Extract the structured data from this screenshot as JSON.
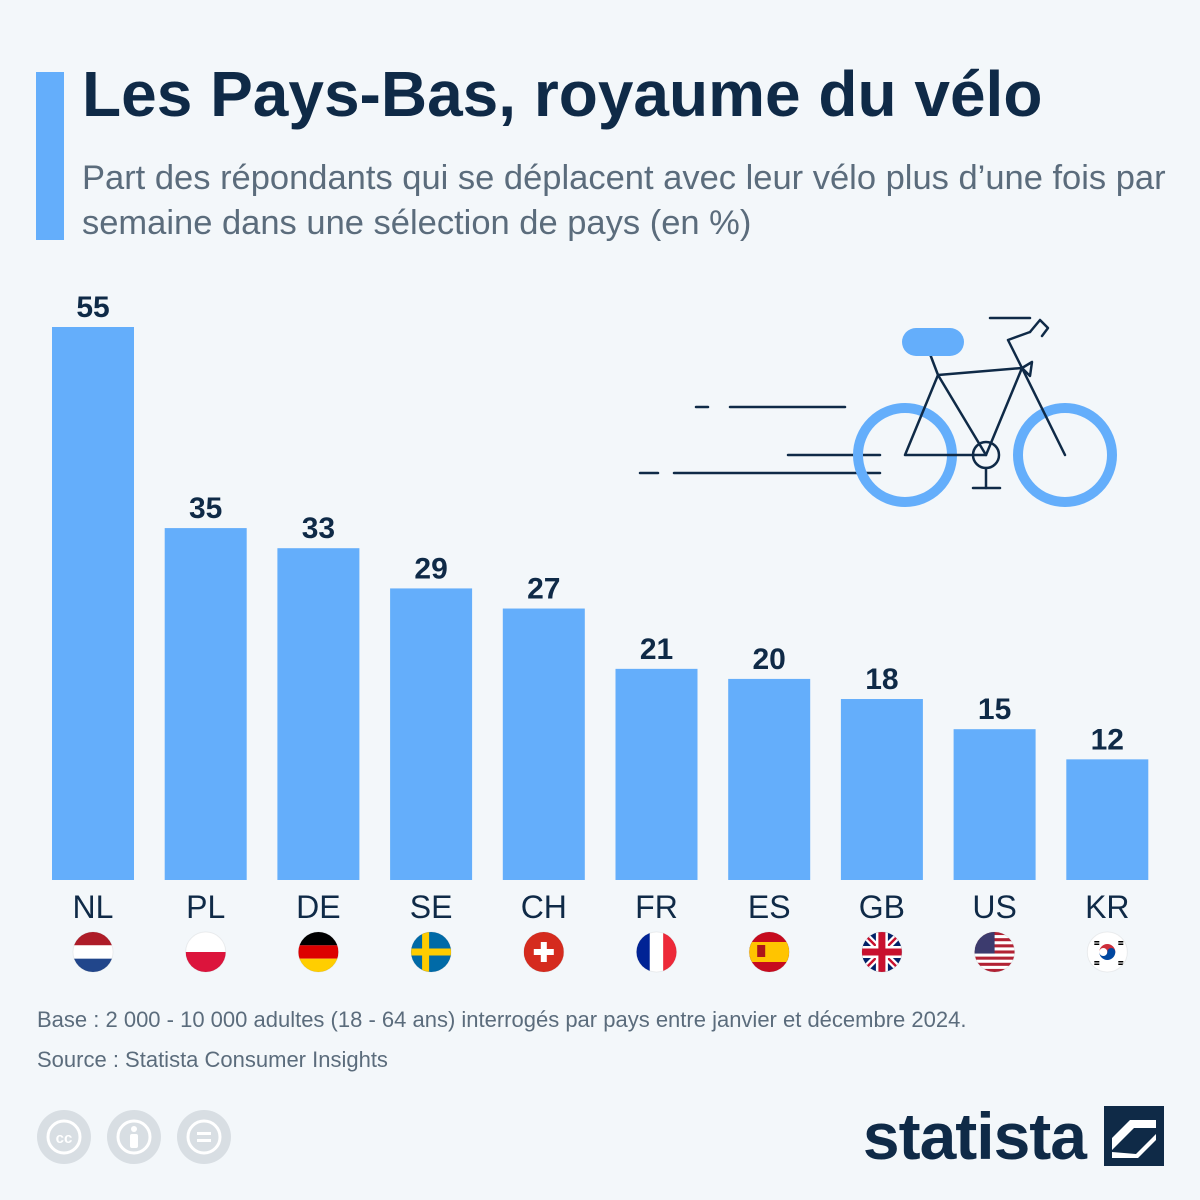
{
  "header": {
    "title": "Les Pays-Bas, royaume du vélo",
    "subtitle": "Part des répondants qui se déplacent avec leur vélo plus d’une fois par semaine dans une sélection de pays (en %)"
  },
  "chart_data": {
    "type": "bar",
    "categories": [
      "NL",
      "PL",
      "DE",
      "SE",
      "CH",
      "FR",
      "ES",
      "GB",
      "US",
      "KR"
    ],
    "values": [
      55,
      35,
      33,
      29,
      27,
      21,
      20,
      18,
      15,
      12
    ],
    "flags": [
      "netherlands-flag-icon",
      "poland-flag-icon",
      "germany-flag-icon",
      "sweden-flag-icon",
      "switzerland-flag-icon",
      "france-flag-icon",
      "spain-flag-icon",
      "united-kingdom-flag-icon",
      "united-states-flag-icon",
      "south-korea-flag-icon"
    ],
    "title": "Les Pays-Bas, royaume du vélo",
    "xlabel": "",
    "ylabel": "",
    "ylim": [
      0,
      55
    ],
    "grid": false,
    "bar_color": "#64aefb"
  },
  "footer": {
    "base_note": "Base : 2 000 - 10 000 adultes (18 - 64 ans) interrogés par pays entre janvier et décembre 2024.",
    "source": "Source : Statista Consumer Insights",
    "brand": "statista"
  },
  "colors": {
    "accent": "#64aefb",
    "text_dark": "#0f2a47",
    "text_muted": "#5b6c7c",
    "background": "#f3f7fa"
  }
}
